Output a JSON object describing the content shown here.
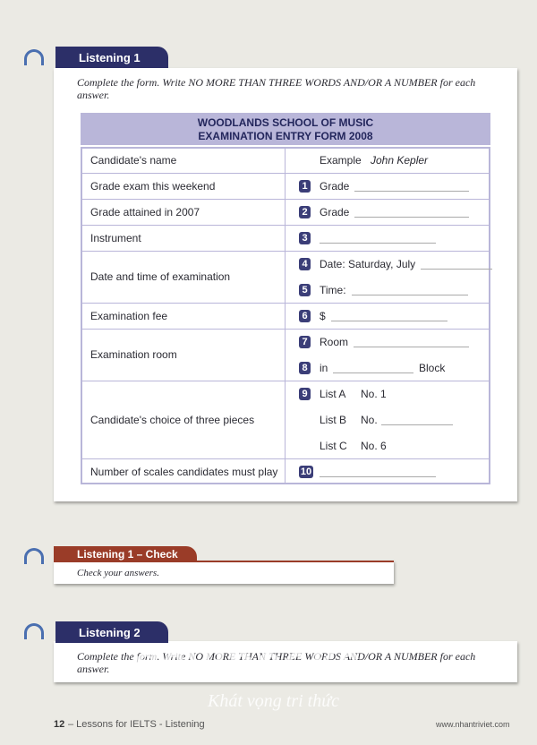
{
  "sections": [
    {
      "title": "Listening 1",
      "instruction": "Complete the form. Write NO MORE THAN THREE WORDS AND/OR A NUMBER for each answer."
    },
    {
      "title": "Listening 1 – Check",
      "instruction": "Check your answers."
    },
    {
      "title": "Listening 2",
      "instruction": "Complete the form. Write NO MORE THAN THREE WORDS AND/OR A NUMBER for each answer."
    }
  ],
  "form": {
    "title": [
      "WOODLANDS SCHOOL OF MUSIC",
      "EXAMINATION ENTRY FORM 2008"
    ],
    "rows": [
      {
        "label": "Candidate's name",
        "items": [
          {
            "text": "Example",
            "answer": "John Kepler"
          }
        ]
      },
      {
        "label": "Grade exam this weekend",
        "items": [
          {
            "num": "1",
            "text": "Grade"
          }
        ]
      },
      {
        "label": "Grade attained in 2007",
        "items": [
          {
            "num": "2",
            "text": "Grade"
          }
        ]
      },
      {
        "label": "Instrument",
        "items": [
          {
            "num": "3"
          }
        ]
      },
      {
        "label": "Date and time of examination",
        "items": [
          {
            "num": "4",
            "text": "Date: Saturday, July"
          },
          {
            "num": "5",
            "text": "Time:"
          }
        ]
      },
      {
        "label": "Examination fee",
        "items": [
          {
            "num": "6",
            "text": "$"
          }
        ]
      },
      {
        "label": "Examination room",
        "items": [
          {
            "num": "7",
            "text": "Room"
          },
          {
            "num": "8",
            "text": "in",
            "after": "Block"
          }
        ]
      },
      {
        "label": "Candidate's choice of three pieces",
        "items": [
          {
            "num": "9",
            "text": "List A",
            "extra": "No. 1"
          },
          {
            "text": "List B",
            "extra": "No."
          },
          {
            "text": "List C",
            "extra": "No. 6"
          }
        ]
      },
      {
        "label": "Number of scales candidates must play",
        "items": [
          {
            "num": "10"
          }
        ]
      }
    ]
  },
  "watermark": [
    "davibooks",
    "Khát vọng tri thức"
  ],
  "footer": {
    "page": "12",
    "book": "– Lessons for IELTS - Listening",
    "url": "www.nhantriviet.com"
  }
}
